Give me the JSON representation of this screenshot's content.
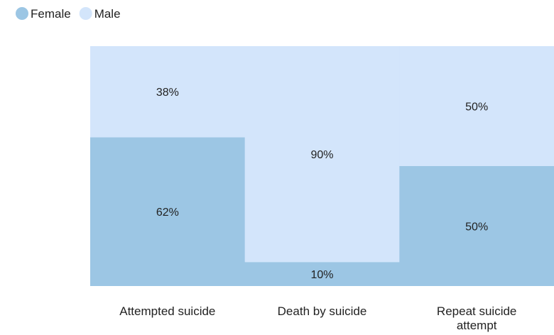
{
  "chart_data": {
    "type": "bar",
    "stacked": true,
    "normalized_percent": true,
    "categories": [
      "Attempted suicide",
      "Death by suicide",
      "Repeat suicide attempt"
    ],
    "series": [
      {
        "name": "Female",
        "color": "#9cc6e4",
        "values": [
          62,
          10,
          50
        ]
      },
      {
        "name": "Male",
        "color": "#d3e5fb",
        "values": [
          38,
          90,
          50
        ]
      }
    ],
    "data_labels": [
      [
        "62%",
        "10%",
        "50%"
      ],
      [
        "38%",
        "90%",
        "50%"
      ]
    ],
    "category_labels": [
      [
        "Attempted suicide"
      ],
      [
        "Death by suicide"
      ],
      [
        "Repeat suicide",
        "attempt"
      ]
    ],
    "ylim": [
      0,
      100
    ],
    "grid": false,
    "legend": "top-left"
  }
}
